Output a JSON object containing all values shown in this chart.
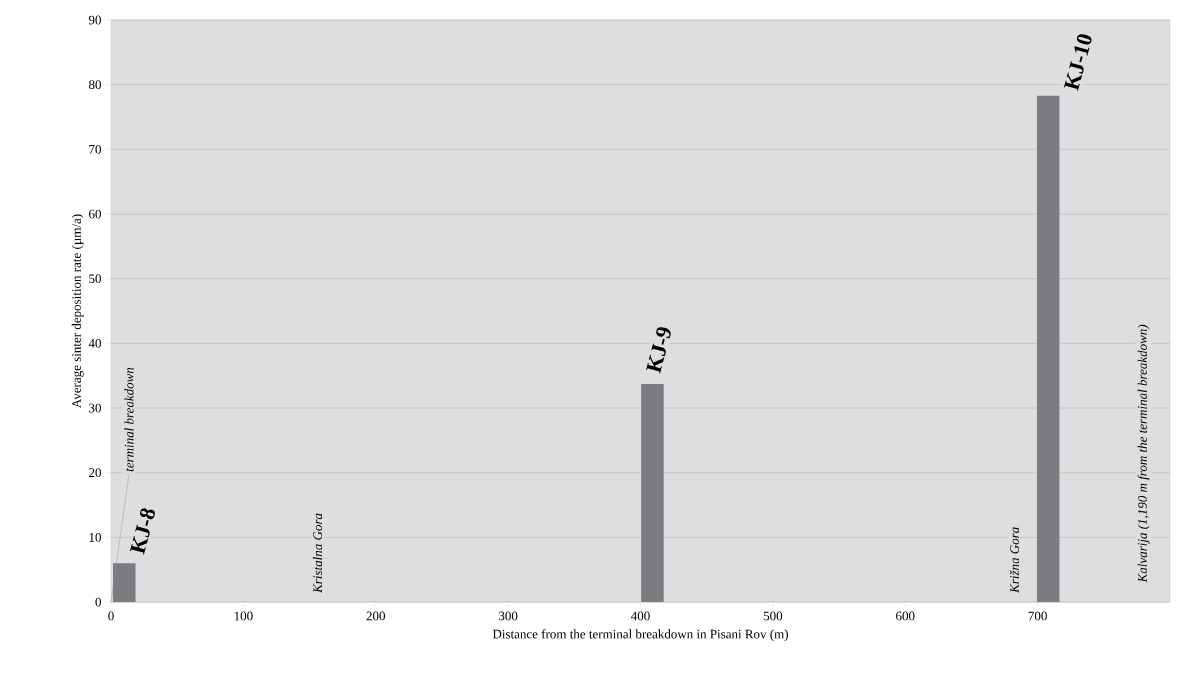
{
  "chart_data": {
    "type": "bar",
    "xlabel": "Distance from the terminal breakdown in Pisani Rov (m)",
    "ylabel": "Average sinter deposition rate (µm/a)",
    "x": [
      10,
      409,
      708
    ],
    "values": [
      6.0,
      33.7,
      78.3
    ],
    "color": "#7b7c80",
    "xlim": [
      0,
      800
    ],
    "xticks": [
      0,
      100,
      200,
      300,
      400,
      500,
      600,
      700
    ],
    "ylim": [
      0,
      90
    ],
    "yticks": [
      0,
      10,
      20,
      30,
      40,
      50,
      60,
      70,
      80,
      90
    ],
    "grid": "y",
    "annotations": [
      {
        "text": "KJ-8",
        "x": 10,
        "y": 6.0
      },
      {
        "text": "KJ-9",
        "x": 409,
        "y": 33.7
      },
      {
        "text": "KJ-10",
        "x": 708,
        "y": 78.3
      },
      {
        "text": "terminal breakdown",
        "x": 0,
        "y": 0
      },
      "Kristalna Gora",
      "Križna Gora",
      "Kalvarija (1,190 m from the terminal breakdown)"
    ]
  }
}
